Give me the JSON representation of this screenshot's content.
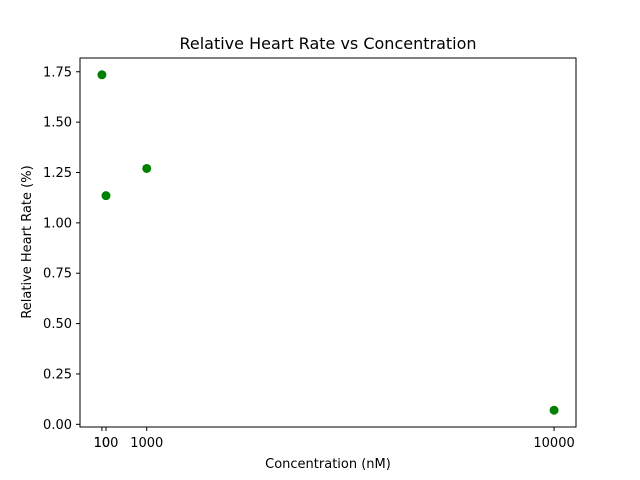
{
  "chart_data": {
    "type": "scatter",
    "title": "Relative Heart Rate vs Concentration",
    "xlabel": "Concentration (nM)",
    "ylabel": "Relative Heart Rate (%)",
    "x": [
      10,
      100,
      1000,
      10000
    ],
    "y": [
      1.735,
      1.135,
      1.27,
      0.07
    ],
    "xticks": [
      10,
      100,
      1000,
      10000
    ],
    "xtick_labels": [
      "10",
      "100",
      "1000",
      "10000"
    ],
    "yticks": [
      0.0,
      0.25,
      0.5,
      0.75,
      1.0,
      1.25,
      1.5,
      1.75
    ],
    "ytick_labels": [
      "0.00",
      "0.25",
      "0.50",
      "0.75",
      "1.00",
      "1.25",
      "1.50",
      "1.75"
    ],
    "xlim": [
      -474.5,
      10484.5
    ],
    "ylim": [
      -0.0133,
      1.8183
    ],
    "marker_color": "#008000",
    "grid": false,
    "legend": "none"
  }
}
